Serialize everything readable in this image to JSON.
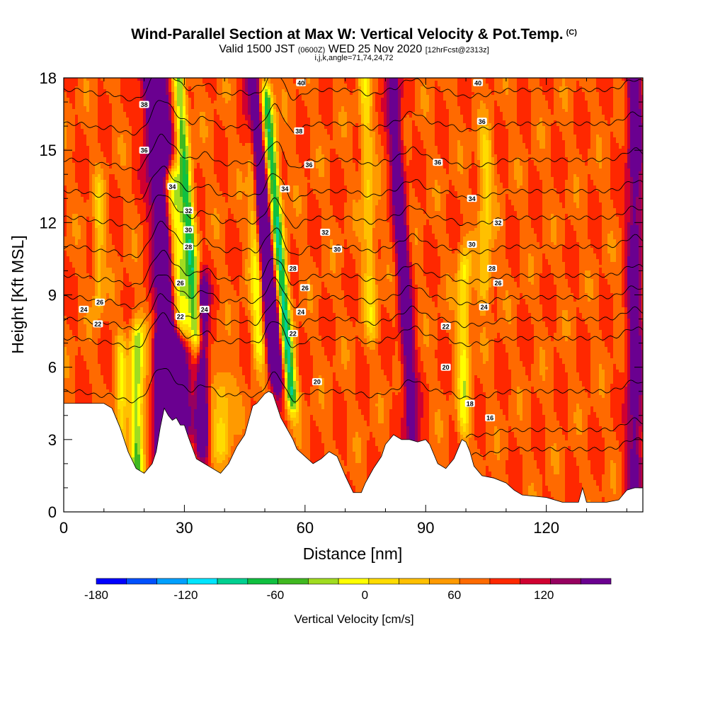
{
  "header": {
    "title": "Wind-Parallel Section at Max W: Vertical Velocity & Pot.Temp.",
    "copyright": "(C)",
    "valid_prefix": "Valid 1500 JST",
    "utc": "(0600Z)",
    "valid_date": "WED 25 Nov 2020",
    "forecast": "[12hrFcst@2313z]",
    "indices": "i,j,k,angle=71,74,24,72"
  },
  "chart_data": {
    "type": "heatmap",
    "xlabel": "Distance [nm]",
    "ylabel": "Height [Kft MSL]",
    "xlim": [
      0,
      144
    ],
    "ylim": [
      0,
      18
    ],
    "x_ticks": [
      "0",
      "30",
      "60",
      "90",
      "120"
    ],
    "y_ticks": [
      "0",
      "3",
      "6",
      "9",
      "12",
      "15",
      "18"
    ],
    "grid": false,
    "colorbar": {
      "label": "Vertical Velocity [cm/s]",
      "range": [
        -180,
        150
      ],
      "step": 15,
      "tick_labels": [
        "-180",
        "-120",
        "-60",
        "0",
        "60",
        "120"
      ],
      "colors": [
        "#0000ff",
        "#0050ff",
        "#00a0ff",
        "#00e5ff",
        "#00d090",
        "#10c040",
        "#40b820",
        "#a0dc20",
        "#ffff00",
        "#ffdc00",
        "#ffc000",
        "#ff9a00",
        "#ff6a00",
        "#ff2800",
        "#d00030",
        "#960060",
        "#6a0090"
      ]
    },
    "terrain_kft": [
      [
        0,
        4.5
      ],
      [
        6,
        4.5
      ],
      [
        10,
        4.5
      ],
      [
        12,
        4.3
      ],
      [
        14,
        3.5
      ],
      [
        16,
        2.5
      ],
      [
        18,
        1.8
      ],
      [
        20,
        1.6
      ],
      [
        22,
        2.0
      ],
      [
        23,
        2.5
      ],
      [
        24,
        3.5
      ],
      [
        25,
        4.3
      ],
      [
        26,
        4.0
      ],
      [
        27,
        3.8
      ],
      [
        28,
        3.9
      ],
      [
        29,
        3.6
      ],
      [
        30,
        3.6
      ],
      [
        31,
        3.1
      ],
      [
        33,
        2.2
      ],
      [
        35,
        2.0
      ],
      [
        37,
        1.8
      ],
      [
        39,
        1.6
      ],
      [
        41,
        2.0
      ],
      [
        43,
        2.7
      ],
      [
        45,
        3.2
      ],
      [
        46,
        3.8
      ],
      [
        47,
        4.4
      ],
      [
        48,
        4.5
      ],
      [
        50,
        4.9
      ],
      [
        51,
        5.0
      ],
      [
        52,
        4.9
      ],
      [
        53,
        4.4
      ],
      [
        54,
        3.9
      ],
      [
        55,
        3.6
      ],
      [
        56,
        3.3
      ],
      [
        57,
        3.0
      ],
      [
        58,
        2.6
      ],
      [
        60,
        2.3
      ],
      [
        62,
        2.0
      ],
      [
        64,
        2.2
      ],
      [
        66,
        2.5
      ],
      [
        68,
        2.3
      ],
      [
        70,
        1.5
      ],
      [
        72,
        0.8
      ],
      [
        74,
        0.8
      ],
      [
        75,
        1.2
      ],
      [
        77,
        1.8
      ],
      [
        79,
        2.3
      ],
      [
        80,
        2.8
      ],
      [
        82,
        3.2
      ],
      [
        84,
        3.0
      ],
      [
        86,
        3.0
      ],
      [
        88,
        2.9
      ],
      [
        90,
        3.0
      ],
      [
        91,
        2.8
      ],
      [
        92,
        2.4
      ],
      [
        93,
        2.0
      ],
      [
        95,
        1.8
      ],
      [
        97,
        2.2
      ],
      [
        98,
        2.6
      ],
      [
        99,
        3.0
      ],
      [
        100,
        2.9
      ],
      [
        101,
        2.5
      ],
      [
        102,
        1.9
      ],
      [
        104,
        1.5
      ],
      [
        107,
        1.4
      ],
      [
        110,
        1.2
      ],
      [
        112,
        0.9
      ],
      [
        114,
        0.7
      ],
      [
        120,
        0.6
      ],
      [
        124,
        0.4
      ],
      [
        128,
        0.4
      ],
      [
        129,
        1.0
      ],
      [
        130,
        0.4
      ],
      [
        135,
        0.4
      ],
      [
        138,
        0.5
      ],
      [
        140,
        0.9
      ],
      [
        142,
        1.0
      ],
      [
        144,
        1.0
      ]
    ],
    "updraft_bands": [
      {
        "x0": 25.5,
        "x1": 31.5,
        "z0": 4.0,
        "z1": 18,
        "tilt": -2.5,
        "peak": 135
      },
      {
        "x0": 22.5,
        "x1": 25.5,
        "z0": 1.8,
        "z1": 6.5,
        "tilt": 0.0,
        "peak": 120
      },
      {
        "x0": 51.0,
        "x1": 54.5,
        "z0": 6.0,
        "z1": 18,
        "tilt": -3.0,
        "peak": 135
      },
      {
        "x0": 33.0,
        "x1": 36.0,
        "z0": 3.0,
        "z1": 9.0,
        "tilt": 0.0,
        "peak": 85
      },
      {
        "x0": 85.0,
        "x1": 88.5,
        "z0": 3.0,
        "z1": 18,
        "tilt": -2.0,
        "peak": 70
      },
      {
        "x0": 140.0,
        "x1": 144.0,
        "z0": 1.0,
        "z1": 18,
        "tilt": 0.0,
        "peak": 65
      }
    ],
    "downdraft_bands": [
      {
        "x0": 26.5,
        "x1": 31.5,
        "z0": 8.0,
        "z1": 13.5,
        "tilt": -2.5,
        "peak": -140
      },
      {
        "x0": 31.5,
        "x1": 34.5,
        "z0": 7.5,
        "z1": 18,
        "tilt": -2.5,
        "peak": -95
      },
      {
        "x0": 55.0,
        "x1": 58.0,
        "z0": 5.0,
        "z1": 17,
        "tilt": -3.0,
        "peak": -120
      },
      {
        "x0": 16.5,
        "x1": 20.0,
        "z0": 2.0,
        "z1": 7.0,
        "tilt": 0.0,
        "peak": -85
      },
      {
        "x0": 13.0,
        "x1": 15.5,
        "z0": 3.0,
        "z1": 6.5,
        "tilt": 0.0,
        "peak": -50
      },
      {
        "x0": 47.0,
        "x1": 50.0,
        "z0": 7.0,
        "z1": 18,
        "tilt": -1.0,
        "peak": -65
      },
      {
        "x0": 75.0,
        "x1": 78.0,
        "z0": 8.0,
        "z1": 18,
        "tilt": -1.0,
        "peak": -45
      },
      {
        "x0": 98.0,
        "x1": 101.0,
        "z0": 4.0,
        "z1": 10.0,
        "tilt": 0.0,
        "peak": -60
      },
      {
        "x0": 103.0,
        "x1": 106.5,
        "z0": 9.5,
        "z1": 15.0,
        "tilt": 0.0,
        "peak": -45
      },
      {
        "x0": 7.5,
        "x1": 10.0,
        "z0": 9.0,
        "z1": 13.0,
        "tilt": 0.0,
        "peak": -40
      },
      {
        "x0": 37.0,
        "x1": 42.0,
        "z0": 3.0,
        "z1": 5.0,
        "tilt": 0.0,
        "peak": -45
      }
    ],
    "theta_contours": [
      {
        "theta": 16,
        "z": 2.6,
        "x_start": 98
      },
      {
        "theta": 18,
        "z": 3.4,
        "x_start": 100
      },
      {
        "theta": 20,
        "z": 5.0,
        "x_start": 0
      },
      {
        "theta": 22,
        "z": 7.2,
        "x_start": 0
      },
      {
        "theta": 24,
        "z": 8.0,
        "x_start": 0
      },
      {
        "theta": 26,
        "z": 8.9,
        "x_start": 0
      },
      {
        "theta": 28,
        "z": 9.8,
        "x_start": 0
      },
      {
        "theta": 30,
        "z": 11.0,
        "x_start": 0
      },
      {
        "theta": 32,
        "z": 12.2,
        "x_start": 0
      },
      {
        "theta": 34,
        "z": 13.3,
        "x_start": 0
      },
      {
        "theta": 36,
        "z": 14.6,
        "x_start": 0
      },
      {
        "theta": 38,
        "z": 16.1,
        "x_start": 0
      },
      {
        "theta": 40,
        "z": 17.5,
        "x_start": 0
      }
    ],
    "contour_labels": [
      {
        "text": "38",
        "x": 20,
        "z": 16.9
      },
      {
        "text": "36",
        "x": 20,
        "z": 15.0
      },
      {
        "text": "34",
        "x": 27,
        "z": 13.5
      },
      {
        "text": "32",
        "x": 31,
        "z": 12.5
      },
      {
        "text": "30",
        "x": 31,
        "z": 11.7
      },
      {
        "text": "28",
        "x": 31,
        "z": 11.0
      },
      {
        "text": "26",
        "x": 29,
        "z": 9.5
      },
      {
        "text": "22",
        "x": 29,
        "z": 8.1
      },
      {
        "text": "24",
        "x": 35,
        "z": 8.4
      },
      {
        "text": "26",
        "x": 9,
        "z": 8.7
      },
      {
        "text": "24",
        "x": 5,
        "z": 8.4
      },
      {
        "text": "22",
        "x": 8.5,
        "z": 7.8
      },
      {
        "text": "40",
        "x": 59,
        "z": 17.8
      },
      {
        "text": "38",
        "x": 58.5,
        "z": 15.8
      },
      {
        "text": "36",
        "x": 61,
        "z": 14.4
      },
      {
        "text": "34",
        "x": 55,
        "z": 13.4
      },
      {
        "text": "32",
        "x": 65,
        "z": 11.6
      },
      {
        "text": "30",
        "x": 68,
        "z": 10.9
      },
      {
        "text": "28",
        "x": 57,
        "z": 10.1
      },
      {
        "text": "26",
        "x": 60,
        "z": 9.3
      },
      {
        "text": "24",
        "x": 59,
        "z": 8.3
      },
      {
        "text": "22",
        "x": 57,
        "z": 7.4
      },
      {
        "text": "20",
        "x": 63,
        "z": 5.4
      },
      {
        "text": "40",
        "x": 103,
        "z": 17.8
      },
      {
        "text": "36",
        "x": 104,
        "z": 16.2
      },
      {
        "text": "36",
        "x": 93,
        "z": 14.5
      },
      {
        "text": "34",
        "x": 101.5,
        "z": 13.0
      },
      {
        "text": "32",
        "x": 108,
        "z": 12.0
      },
      {
        "text": "30",
        "x": 101.5,
        "z": 11.1
      },
      {
        "text": "28",
        "x": 106.5,
        "z": 10.1
      },
      {
        "text": "26",
        "x": 108,
        "z": 9.5
      },
      {
        "text": "24",
        "x": 104.5,
        "z": 8.5
      },
      {
        "text": "22",
        "x": 95,
        "z": 7.7
      },
      {
        "text": "20",
        "x": 95,
        "z": 6.0
      },
      {
        "text": "18",
        "x": 101,
        "z": 4.5
      },
      {
        "text": "16",
        "x": 106,
        "z": 3.9
      }
    ]
  }
}
